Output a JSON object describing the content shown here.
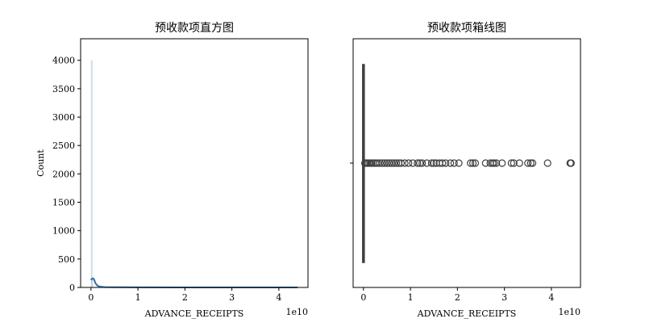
{
  "chart_data": [
    {
      "type": "histogram",
      "title": "预收款项直方图",
      "xlabel": "ADVANCE_RECEIPTS",
      "ylabel": "Count",
      "x_offset_label": "1e10",
      "xlim": [
        -0.22,
        4.62
      ],
      "ylim": [
        0,
        4380
      ],
      "x_ticks": [
        0,
        1,
        2,
        3,
        4
      ],
      "y_ticks": [
        0,
        500,
        1000,
        1500,
        2000,
        2500,
        3000,
        3500,
        4000
      ],
      "bars": [
        {
          "x": 0.0,
          "count": 4000
        },
        {
          "x": 0.01,
          "count": 150
        }
      ],
      "kde": {
        "x": [
          0.0,
          0.02,
          0.04,
          0.06,
          0.08,
          0.1,
          0.14,
          0.2,
          0.3,
          0.5,
          1.0,
          2.0,
          3.0,
          4.0,
          4.4
        ],
        "y": [
          130,
          150,
          160,
          150,
          110,
          70,
          30,
          12,
          6,
          3,
          1,
          0,
          0,
          0,
          0
        ]
      },
      "bar_color": "#9dc3df",
      "line_color": "#2f6fa5",
      "grid": false
    },
    {
      "type": "boxplot",
      "title": "预收款项箱线图",
      "xlabel": "ADVANCE_RECEIPTS",
      "x_offset_label": "1e10",
      "xlim": [
        -0.22,
        4.62
      ],
      "x_ticks": [
        0,
        1,
        2,
        3,
        4
      ],
      "box": {
        "q1": 0.0,
        "median": 0.0,
        "q3": 0.01,
        "whisker_low": 0.0,
        "whisker_high": 0.02
      },
      "outliers": [
        0.03,
        0.05,
        0.07,
        0.09,
        0.12,
        0.15,
        0.18,
        0.22,
        0.26,
        0.3,
        0.35,
        0.4,
        0.45,
        0.5,
        0.55,
        0.6,
        0.65,
        0.7,
        0.75,
        0.8,
        0.88,
        0.96,
        1.05,
        1.15,
        1.2,
        1.25,
        1.35,
        1.45,
        1.5,
        1.55,
        1.62,
        1.68,
        1.75,
        1.85,
        1.93,
        2.03,
        2.28,
        2.33,
        2.38,
        2.6,
        2.7,
        2.75,
        2.78,
        2.83,
        2.95,
        3.15,
        3.2,
        3.32,
        3.5,
        3.56,
        3.6,
        3.92,
        4.4,
        4.42
      ],
      "line_color": "#3f3f3f",
      "grid": false
    }
  ]
}
